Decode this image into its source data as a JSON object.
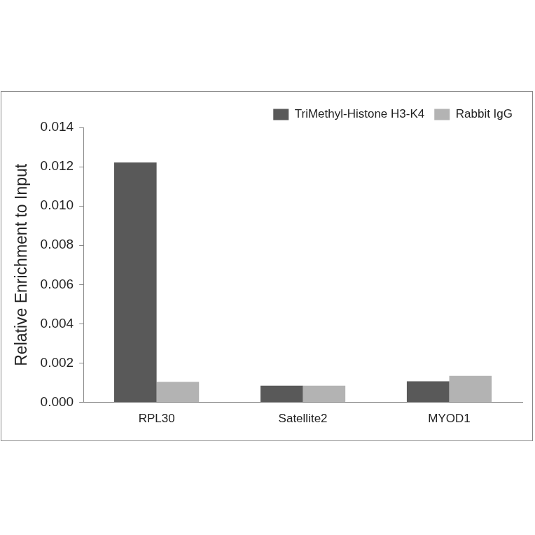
{
  "chart_data": {
    "type": "bar",
    "y_label": "Relative Enrichment to Input",
    "categories": [
      "RPL30",
      "Satellite2",
      "MYOD1"
    ],
    "series": [
      {
        "name": "TriMethyl-Histone H3-K4",
        "color": "#595959",
        "values": [
          0.01222,
          0.00085,
          0.00107
        ]
      },
      {
        "name": "Rabbit IgG",
        "color": "#b3b3b3",
        "values": [
          0.00105,
          0.00085,
          0.00135
        ]
      }
    ],
    "ylim": [
      0,
      0.014
    ],
    "yticks": [
      {
        "value": 0,
        "label": "0.000"
      },
      0.002,
      0.004,
      0.006,
      0.008,
      {
        "value": 0.01,
        "label": "0.010"
      },
      0.012,
      0.014
    ],
    "grid": false,
    "legend": "upper right"
  }
}
